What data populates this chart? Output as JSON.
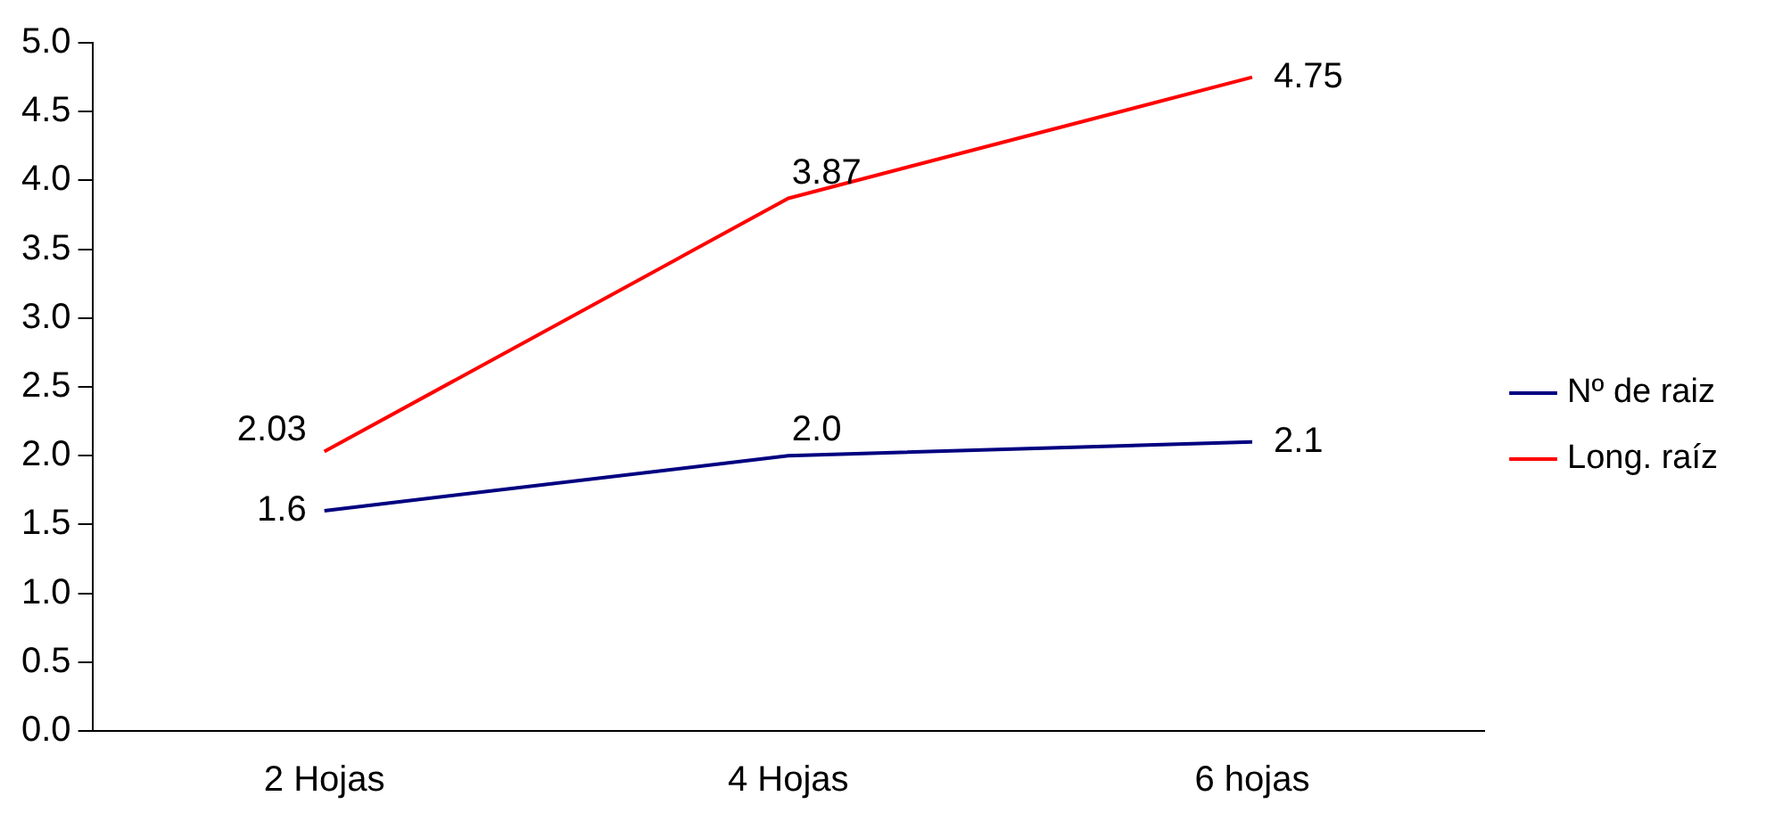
{
  "chart_data": {
    "type": "line",
    "categories": [
      "2 Hojas",
      "4 Hojas",
      "6 hojas"
    ],
    "series": [
      {
        "name": "Nº de raiz",
        "color": "#000080",
        "values": [
          1.6,
          2.0,
          2.1
        ],
        "value_labels": [
          "1.6",
          "2.0",
          "2.1"
        ]
      },
      {
        "name": "Long. raíz",
        "color": "#ff0000",
        "values": [
          2.03,
          3.87,
          4.75
        ],
        "value_labels": [
          "2.03",
          "3.87",
          "4.75"
        ]
      }
    ],
    "ylim": [
      0,
      5
    ],
    "yticks": [
      {
        "value": 0,
        "label": "0.0"
      },
      0.5,
      {
        "value": 1,
        "label": "1.0"
      },
      1.5,
      {
        "value": 2,
        "label": "2.0"
      },
      2.5,
      {
        "value": 3,
        "label": "3.0"
      },
      3.5,
      {
        "value": 4,
        "label": "4.0"
      },
      4.5,
      {
        "value": 5,
        "label": "5.0"
      }
    ],
    "grid": false,
    "legend": "right",
    "marker": "none"
  }
}
